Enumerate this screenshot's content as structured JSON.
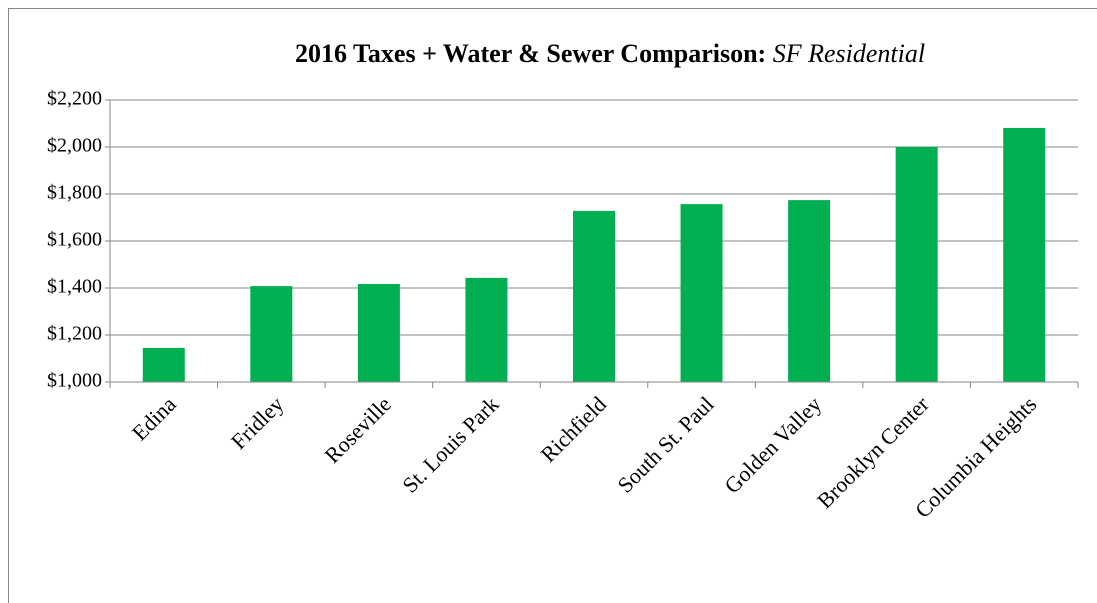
{
  "chart_data": {
    "type": "bar",
    "title": "2016 Taxes + Water & Sewer Comparison:",
    "subtitle": "SF Residential",
    "categories": [
      "Edina",
      "Fridley",
      "Roseville",
      "St. Louis Park",
      "Richfield",
      "South St. Paul",
      "Golden Valley",
      "Brooklyn Center",
      "Columbia Heights"
    ],
    "values": [
      1145,
      1408,
      1417,
      1443,
      1728,
      1757,
      1774,
      2000,
      2081
    ],
    "color": "#00b050",
    "ylim": [
      1000,
      2200
    ],
    "yticks": [
      {
        "value": 1000,
        "label": "$1,000"
      },
      {
        "value": 1200,
        "label": "$1,200"
      },
      {
        "value": 1400,
        "label": "$1,400"
      },
      {
        "value": 1600,
        "label": "$1,600"
      },
      {
        "value": 1800,
        "label": "$1,800"
      },
      {
        "value": 2000,
        "label": "$2,000"
      },
      {
        "value": 2200,
        "label": "$2,200"
      }
    ],
    "grid": true
  }
}
